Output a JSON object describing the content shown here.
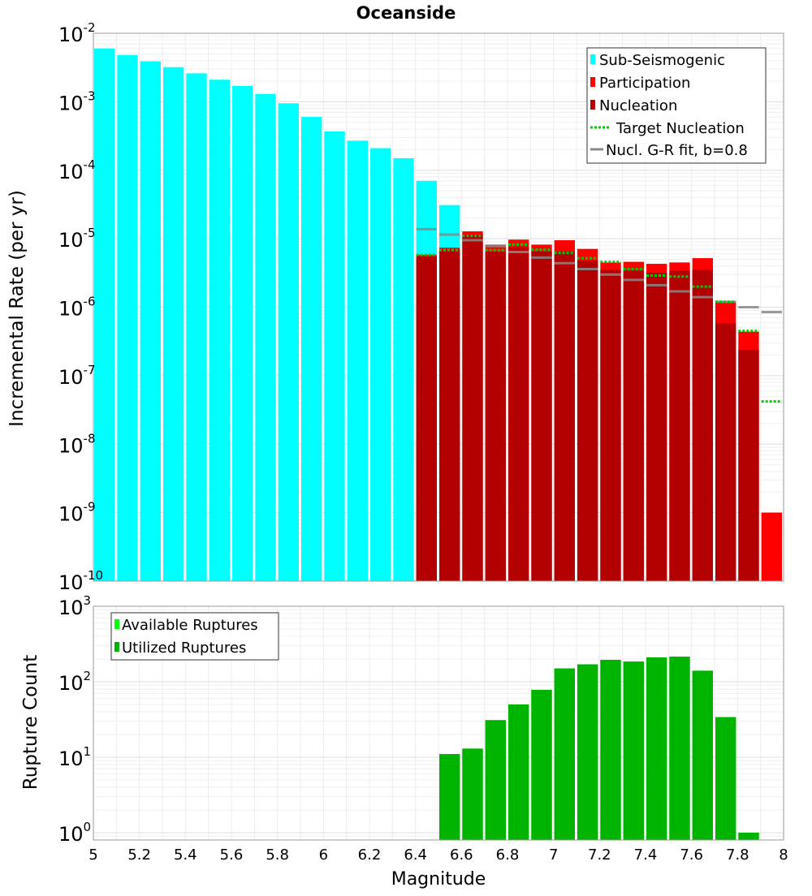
{
  "chart_data": [
    {
      "type": "bar",
      "title": "Oceanside",
      "ylabel": "Incremental Rate (per yr)",
      "xlabel": "",
      "yscale": "log",
      "ylim": [
        1e-10,
        0.01
      ],
      "xlim": [
        5,
        8
      ],
      "grid": true,
      "legend_position": "top-right",
      "yticks": [
        {
          "base": "10",
          "exp": "-2",
          "value": 0.01
        },
        {
          "base": "10",
          "exp": "-3",
          "value": 0.001
        },
        {
          "base": "10",
          "exp": "-4",
          "value": 0.0001
        },
        {
          "base": "10",
          "exp": "-5",
          "value": 1e-05
        },
        {
          "base": "10",
          "exp": "-6",
          "value": 1e-06
        },
        {
          "base": "10",
          "exp": "-7",
          "value": 1e-07
        },
        {
          "base": "10",
          "exp": "-8",
          "value": 1e-08
        },
        {
          "base": "10",
          "exp": "-9",
          "value": 1e-09
        },
        {
          "base": "10",
          "exp": "-10",
          "value": 1e-10
        }
      ],
      "series": [
        {
          "name": "Sub-Seismogenic",
          "color": "#00ffff",
          "kind": "bar",
          "x": [
            5.05,
            5.15,
            5.25,
            5.35,
            5.45,
            5.55,
            5.65,
            5.75,
            5.85,
            5.95,
            6.05,
            6.15,
            6.25,
            6.35,
            6.45,
            6.55
          ],
          "values": [
            0.006,
            0.0048,
            0.0039,
            0.0032,
            0.0026,
            0.0021,
            0.0017,
            0.0013,
            0.00095,
            0.0006,
            0.00037,
            0.00027,
            0.00021,
            0.00015,
            7e-05,
            3.1e-05
          ]
        },
        {
          "name": "Participation",
          "color": "#ff0000",
          "kind": "bar",
          "x": [
            6.45,
            6.55,
            6.65,
            6.75,
            6.85,
            6.95,
            7.05,
            7.15,
            7.25,
            7.35,
            7.45,
            7.55,
            7.65,
            7.75,
            7.85,
            7.95
          ],
          "values": [
            5.8e-06,
            7.4e-06,
            1.28e-05,
            8.2e-06,
            9.7e-06,
            8.2e-06,
            9.5e-06,
            7.1e-06,
            4.5e-06,
            4.6e-06,
            4.3e-06,
            4.5e-06,
            5.2e-06,
            1.2e-06,
            4.4e-07,
            1e-09
          ]
        },
        {
          "name": "Nucleation",
          "color": "#b30000",
          "kind": "bar",
          "x": [
            6.45,
            6.55,
            6.65,
            6.75,
            6.85,
            6.95,
            7.05,
            7.15,
            7.25,
            7.35,
            7.45,
            7.55,
            7.65,
            7.75,
            7.85
          ],
          "values": [
            5.5e-06,
            7e-06,
            1.15e-05,
            6.5e-06,
            7.5e-06,
            6.5e-06,
            6.5e-06,
            4.8e-06,
            3.5e-06,
            3.4e-06,
            3.2e-06,
            3.4e-06,
            3.5e-06,
            5.8e-07,
            2.4e-07
          ]
        },
        {
          "name": "Target Nucleation",
          "color": "#00cc00",
          "kind": "dotted-step",
          "x": [
            6.45,
            6.55,
            6.65,
            6.75,
            6.85,
            6.95,
            7.05,
            7.15,
            7.25,
            7.35,
            7.45,
            7.55,
            7.65,
            7.75,
            7.85,
            7.95
          ],
          "values": [
            5.8e-06,
            6.8e-06,
            1.1e-05,
            6.8e-06,
            8.2e-06,
            6.9e-06,
            6.2e-06,
            5.2e-06,
            4.6e-06,
            3.6e-06,
            2.9e-06,
            2.8e-06,
            2e-06,
            1.2e-06,
            4.5e-07,
            4.2e-08
          ]
        },
        {
          "name": "Nucl. G-R fit, b=0.8",
          "color": "#888888",
          "kind": "step",
          "x": [
            6.45,
            6.55,
            6.65,
            6.75,
            6.85,
            6.95,
            7.05,
            7.15,
            7.25,
            7.35,
            7.45,
            7.55,
            7.65,
            7.75,
            7.85,
            7.95
          ],
          "values": [
            1.38e-05,
            1.15e-05,
            9.5e-06,
            7.8e-06,
            6.4e-06,
            5.3e-06,
            4.4e-06,
            3.6e-06,
            3e-06,
            2.5e-06,
            2.1e-06,
            1.7e-06,
            1.4e-06,
            1.2e-06,
            1e-06,
            8.5e-07
          ]
        }
      ]
    },
    {
      "type": "bar",
      "title": "",
      "ylabel": "Rupture Count",
      "xlabel": "Magnitude",
      "yscale": "log",
      "ylim": [
        0.8,
        1000
      ],
      "xlim": [
        5,
        8
      ],
      "grid": true,
      "legend_position": "top-left",
      "yticks": [
        {
          "base": "10",
          "exp": "3",
          "value": 1000
        },
        {
          "base": "10",
          "exp": "2",
          "value": 100
        },
        {
          "base": "10",
          "exp": "1",
          "value": 10
        },
        {
          "base": "10",
          "exp": "0",
          "value": 1
        }
      ],
      "xticks": [
        "5",
        "5.2",
        "5.4",
        "5.6",
        "5.8",
        "6",
        "6.2",
        "6.4",
        "6.6",
        "6.8",
        "7",
        "7.2",
        "7.4",
        "7.6",
        "7.8",
        "8"
      ],
      "series": [
        {
          "name": "Available Ruptures",
          "color": "#00ff00",
          "kind": "bar",
          "x": [
            6.55,
            6.65,
            6.75,
            6.85,
            6.95,
            7.05,
            7.15,
            7.25,
            7.35,
            7.45,
            7.55,
            7.65,
            7.75,
            7.85
          ],
          "values": [
            11,
            13,
            31,
            50,
            78,
            150,
            170,
            195,
            185,
            210,
            215,
            140,
            34,
            1
          ]
        },
        {
          "name": "Utilized Ruptures",
          "color": "#00b300",
          "kind": "bar",
          "x": [
            6.55,
            6.65,
            6.75,
            6.85,
            6.95,
            7.05,
            7.15,
            7.25,
            7.35,
            7.45,
            7.55,
            7.65,
            7.75,
            7.85
          ],
          "values": [
            11,
            13,
            31,
            50,
            78,
            150,
            170,
            195,
            185,
            210,
            215,
            140,
            34,
            1
          ]
        }
      ]
    }
  ]
}
